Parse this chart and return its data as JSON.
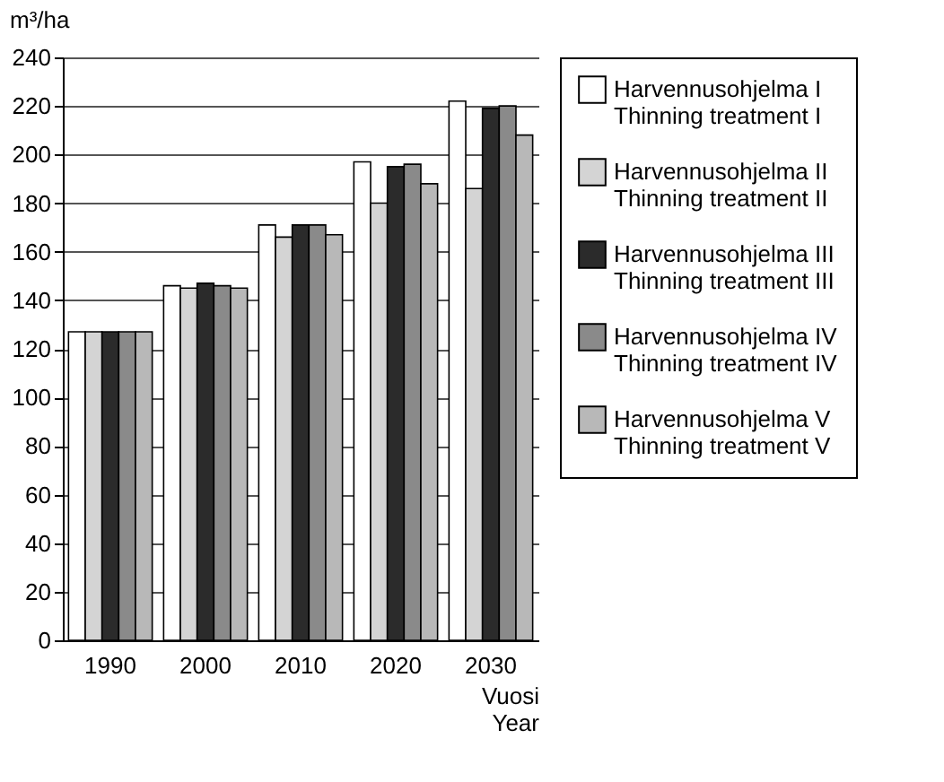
{
  "chart_data": {
    "type": "bar",
    "ylabel": "m³/ha",
    "xlabel": "Vuosi\nYear",
    "categories": [
      "1990",
      "2000",
      "2010",
      "2020",
      "2030"
    ],
    "series": [
      {
        "name": "Harvennusohjelma I\nThinning treatment I",
        "color": "#ffffff",
        "values": [
          127,
          146,
          171,
          197,
          222
        ]
      },
      {
        "name": "Harvennusohjelma II\nThinning treatment II",
        "color": "#d4d4d4",
        "values": [
          127,
          145,
          166,
          180,
          186
        ]
      },
      {
        "name": "Harvennusohjelma III\nThinning treatment III",
        "color": "#2b2b2b",
        "values": [
          127,
          147,
          171,
          195,
          219
        ]
      },
      {
        "name": "Harvennusohjelma IV\nThinning treatment IV",
        "color": "#8a8a8a",
        "values": [
          127,
          146,
          171,
          196,
          220
        ]
      },
      {
        "name": "Harvennusohjelma V\nThinning treatment V",
        "color": "#b8b8b8",
        "values": [
          127,
          145,
          167,
          188,
          208
        ]
      }
    ],
    "ylim": [
      0,
      240
    ],
    "yticks": [
      0,
      20,
      40,
      60,
      80,
      100,
      120,
      140,
      160,
      180,
      200,
      220,
      240
    ],
    "grid": "y",
    "legend": "right"
  }
}
